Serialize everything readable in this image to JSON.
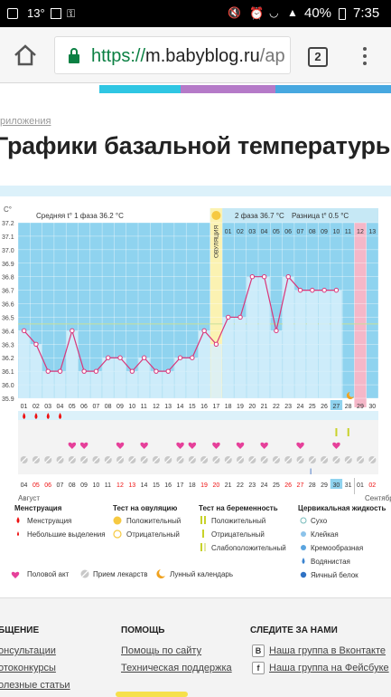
{
  "status_bar": {
    "temperature": "13°",
    "battery": "40%",
    "time": "7:35"
  },
  "browser": {
    "url_scheme": "https://",
    "url_host": "m.babyblog.ru",
    "url_rest": "/ap",
    "tab_count": "2"
  },
  "page": {
    "breadcrumb": "риложения",
    "title": "Графики базальной температуры"
  },
  "chart_labels": {
    "unit": "С°",
    "phase1": "Средняя t° 1 фаза 36.2 °С",
    "phase2": "2 фаза 36.7 °С",
    "diff": "Разница t° 0.5 °С",
    "ovulation": "ОВУЛЯЦИЯ",
    "month1": "Август",
    "month2": "Сентябрь"
  },
  "chart_data": {
    "type": "line",
    "x": [
      "01",
      "02",
      "03",
      "04",
      "05",
      "06",
      "07",
      "08",
      "09",
      "10",
      "11",
      "12",
      "13",
      "14",
      "15",
      "16",
      "17",
      "18",
      "19",
      "20",
      "21",
      "22",
      "23",
      "24",
      "25",
      "26",
      "27",
      "28",
      "29",
      "30"
    ],
    "y": [
      36.4,
      36.3,
      36.1,
      36.1,
      36.4,
      36.1,
      36.1,
      36.2,
      36.2,
      36.1,
      36.2,
      36.1,
      36.1,
      36.2,
      36.2,
      36.4,
      36.3,
      36.5,
      36.5,
      36.8,
      36.8,
      36.4,
      36.8,
      36.7,
      36.7,
      36.7,
      36.7,
      null,
      null,
      null
    ],
    "ylim": [
      35.9,
      37.2
    ],
    "yticks": [
      "37.2",
      "37.1",
      "37.0",
      "36.9",
      "36.8",
      "36.7",
      "36.6",
      "36.5",
      "36.4",
      "36.3",
      "36.2",
      "36.1",
      "36.0",
      "35.9"
    ],
    "top_axis_phase2": [
      "01",
      "02",
      "03",
      "04",
      "05",
      "06",
      "07",
      "08",
      "09",
      "10",
      "11",
      "12",
      "13"
    ],
    "dates": [
      "04",
      "05",
      "06",
      "07",
      "08",
      "09",
      "10",
      "11",
      "12",
      "13",
      "14",
      "15",
      "16",
      "17",
      "18",
      "19",
      "20",
      "21",
      "22",
      "23",
      "24",
      "25",
      "26",
      "27",
      "28",
      "29",
      "30",
      "31",
      "01",
      "02"
    ],
    "date_red": [
      "05",
      "06",
      "12",
      "13",
      "19",
      "20",
      "26",
      "27",
      "02"
    ],
    "ovulation_day": 17,
    "current_day": 27,
    "menstruation_days": [
      1,
      2,
      3,
      4
    ],
    "love_days": [
      5,
      6,
      9,
      11,
      14,
      15,
      17,
      19,
      21,
      24,
      27
    ],
    "pill_days": [
      1,
      2,
      3,
      4,
      5,
      6,
      7,
      8,
      9,
      10,
      11,
      12,
      13,
      14,
      15,
      16,
      17,
      18,
      19,
      20,
      21,
      22,
      23,
      24,
      25,
      26,
      27,
      28,
      29,
      30
    ],
    "pregnancy_test_days": [
      27,
      28
    ]
  },
  "legend": {
    "menses_title": "Менструация",
    "menses": "Менструация",
    "spotting": "Небольшие выделения",
    "ovtest_title": "Тест на овуляцию",
    "ov_pos": "Положительный",
    "ov_neg": "Отрицательный",
    "pregtest_title": "Тест на беременность",
    "preg_pos": "Положительный",
    "preg_neg": "Отрицательный",
    "preg_weak": "Слабоположительный",
    "fluid_title": "Цервикальная жидкость",
    "fluid1": "Сухо",
    "fluid2": "Клейкая",
    "fluid3": "Кремообразная",
    "fluid4": "Водянистая",
    "fluid5": "Яичный белок",
    "love": "Половой акт",
    "pills": "Прием лекарств",
    "moon": "Лунный календарь"
  },
  "footer": {
    "col1": "бщение",
    "col1_links": [
      "онсультации",
      "отоконкурсы",
      "олезные статьи"
    ],
    "col2": "Помощь",
    "col2_links": [
      "Помощь по сайту",
      "Техническая поддержка"
    ],
    "col3": "Следите за нами",
    "col3_links": [
      "Наша группа в Вконтакте",
      "Наша группа на Фейсбуке"
    ],
    "vk": "В",
    "fb": "f"
  },
  "colors": {
    "grid_bg": "#8fd3ef",
    "phase2_bg": "#c6e8f5",
    "line": "#d9367a",
    "ovulation": "#fbf2b2",
    "bar_fill": "#d8f0fb",
    "blue_strip": "#dcf1fa"
  }
}
